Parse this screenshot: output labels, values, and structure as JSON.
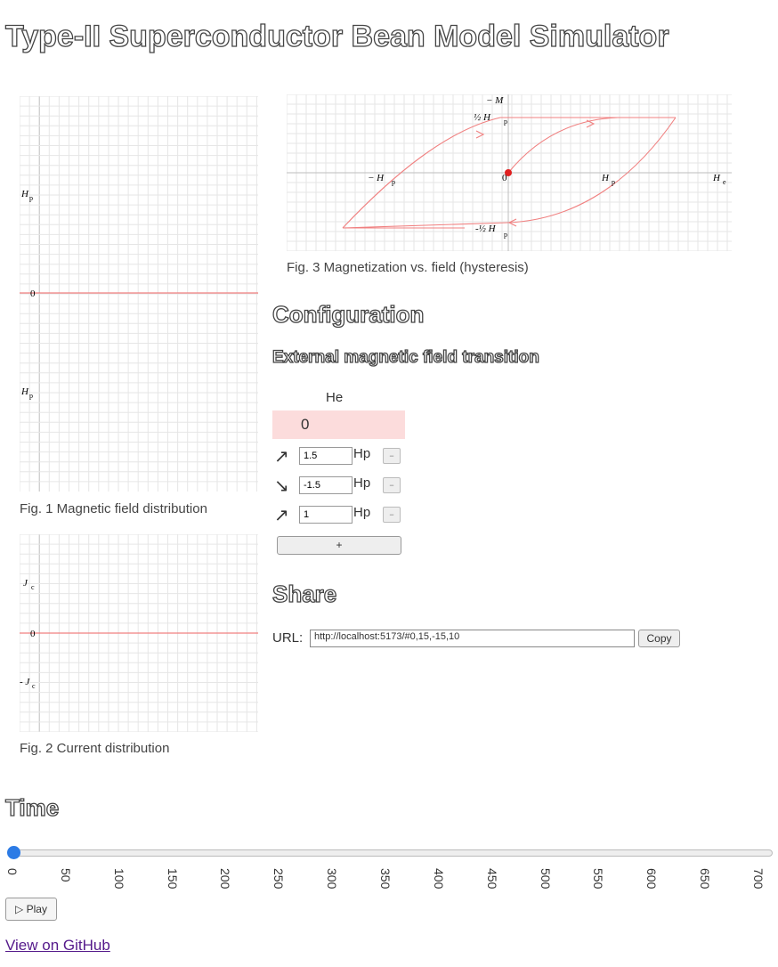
{
  "title": "Type-II Superconductor Bean Model Simulator",
  "fig1": {
    "caption": "Fig. 1 Magnetic field distribution",
    "tick_hp": "H",
    "tick_hp_sub": "p",
    "tick_zero": "0",
    "tick_neg_hp": "H",
    "tick_neg_hp_sub": "p"
  },
  "fig2": {
    "caption": "Fig. 2 Current distribution",
    "tick_jc": "J",
    "tick_jc_sub": "c",
    "tick_zero": "0",
    "tick_neg_jc": "- J",
    "tick_neg_jc_sub": "c"
  },
  "fig3": {
    "caption": "Fig. 3 Magnetization vs. field (hysteresis)",
    "axis_m": "− M",
    "axis_he": "H",
    "axis_he_sub": "e",
    "tick_half_hp": "½ H",
    "tick_half_hp_sub": "p",
    "tick_neg_half_hp": "-½ H",
    "tick_neg_half_hp_sub": "p",
    "tick_neg_hp": "− H",
    "tick_neg_hp_sub": "p",
    "tick_hp": "H",
    "tick_hp_sub": "p",
    "tick_zero": "0"
  },
  "configuration": {
    "heading": "Configuration",
    "subheading": "External magnetic field transition",
    "column_header": "He",
    "initial_value": "0",
    "steps": [
      {
        "arrow": "↗",
        "value": "1.5",
        "unit": "Hp",
        "remove": "−"
      },
      {
        "arrow": "↘",
        "value": "-1.5",
        "unit": "Hp",
        "remove": "−"
      },
      {
        "arrow": "↗",
        "value": "1",
        "unit": "Hp",
        "remove": "−"
      }
    ],
    "add_label": "+"
  },
  "share": {
    "heading": "Share",
    "url_label": "URL:",
    "url_value": "http://localhost:5173/#0,15,-15,10",
    "copy_label": "Copy"
  },
  "time": {
    "heading": "Time",
    "slider_value": 0,
    "slider_max": 700,
    "ticks": [
      "0",
      "50",
      "100",
      "150",
      "200",
      "250",
      "300",
      "350",
      "400",
      "450",
      "500",
      "550",
      "600",
      "650",
      "700"
    ],
    "play_label": "▷ Play"
  },
  "footer": {
    "github_link": "View on GitHub"
  },
  "colors": {
    "curve": "#f08080",
    "grid": "#e6e6e6",
    "axis": "#bdbdbd",
    "accent": "#2c7be5",
    "marker": "#e02020"
  }
}
